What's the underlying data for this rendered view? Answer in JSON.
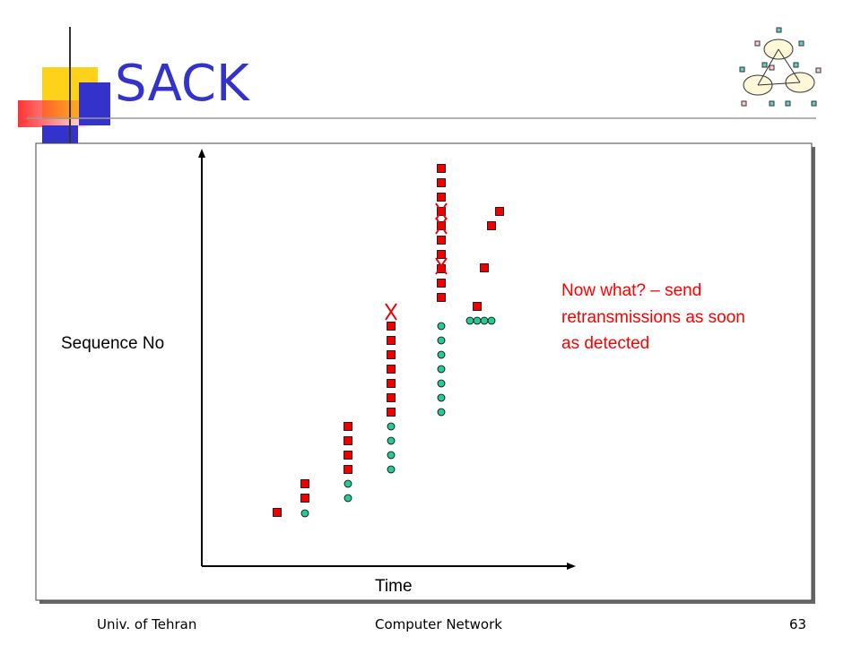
{
  "header": {
    "title": "SACK"
  },
  "diagram": {
    "y_axis_label": "Sequence No",
    "x_axis_label": "Time",
    "note": [
      "Now what? – send",
      "retransmissions as soon",
      "as detected"
    ]
  },
  "footer": {
    "left": "Univ. of Tehran",
    "center": "Computer Network",
    "right": "63"
  }
}
